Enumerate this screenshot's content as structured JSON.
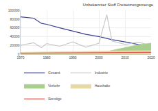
{
  "chart_data": {
    "type": "line",
    "title": "Unbekannter Stoff Freisetzungsmenge",
    "x": [
      1970,
      1975,
      1978,
      1980,
      1985,
      1990,
      1995,
      2000,
      2003,
      2005,
      2010,
      2015,
      2020
    ],
    "series": [
      {
        "name": "Gesamt",
        "color": "#3b3f8f",
        "type": "line",
        "values": [
          85000,
          82000,
          70000,
          68000,
          60000,
          52000,
          45000,
          40000,
          36000,
          33000,
          28000,
          22000,
          18000
        ]
      },
      {
        "name": "Industrie",
        "color": "#c8c8c8",
        "type": "line",
        "values": [
          20000,
          26000,
          15000,
          24000,
          18000,
          28000,
          16000,
          25000,
          90000,
          30000,
          22000,
          27000,
          20000
        ]
      },
      {
        "name": "Verkehr",
        "color": "#a9cf8f",
        "type": "area",
        "values": [
          0,
          0,
          0,
          0,
          0,
          0,
          0,
          2000,
          6000,
          9000,
          15000,
          21000,
          25000
        ]
      },
      {
        "name": "Haushalte",
        "color": "#e6d9a8",
        "type": "area",
        "values": [
          4000,
          4500,
          5000,
          5000,
          5500,
          6000,
          6000,
          6500,
          7000,
          7000,
          7500,
          8000,
          8000
        ]
      },
      {
        "name": "Sonstige",
        "color": "#d9534f",
        "type": "line",
        "values": [
          2000,
          2200,
          2500,
          2600,
          2800,
          3000,
          3000,
          3200,
          3400,
          3500,
          3800,
          4000,
          4200
        ]
      }
    ],
    "xlim": [
      1970,
      2020
    ],
    "xticks": [
      1970,
      1980,
      1990,
      2000,
      2010,
      2020
    ],
    "ylim": [
      0,
      100000
    ],
    "yticks": [
      0,
      20000,
      40000,
      60000,
      80000,
      100000
    ],
    "grid": true,
    "legend": "bottom"
  }
}
